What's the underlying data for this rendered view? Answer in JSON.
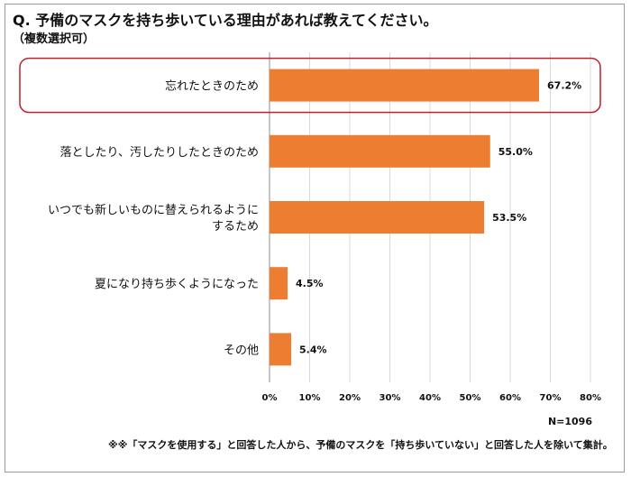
{
  "title": "Q. 予備のマスクを持ち歩いている理由があれば教えてください。",
  "subtitle": "（複数選択可）",
  "sample_size": "N=1096",
  "footnote": "※※「マスクを使用する」と回答した人から、予備のマスクを「持ち歩いていない」と回答した人を除いて集計。",
  "colors": {
    "bar": "#ED7D31",
    "highlight_border": "#C0202A",
    "grid": "#D9D9D9"
  },
  "chart_data": {
    "type": "bar",
    "orientation": "horizontal",
    "categories": [
      [
        "忘れたときのため"
      ],
      [
        "落としたり、汚したりしたときのため"
      ],
      [
        "いつでも新しいものに替えられるように",
        "するため"
      ],
      [
        "夏になり持ち歩くようになった"
      ],
      [
        "その他"
      ]
    ],
    "values": [
      67.2,
      55.0,
      53.5,
      4.5,
      5.4
    ],
    "value_labels": [
      "67.2%",
      "55.0%",
      "53.5%",
      "4.5%",
      "5.4%"
    ],
    "xlim": [
      0,
      80
    ],
    "xticks": [
      "0%",
      "10%",
      "20%",
      "30%",
      "40%",
      "50%",
      "60%",
      "70%",
      "80%"
    ],
    "grid": true,
    "highlighted_category": 0
  }
}
